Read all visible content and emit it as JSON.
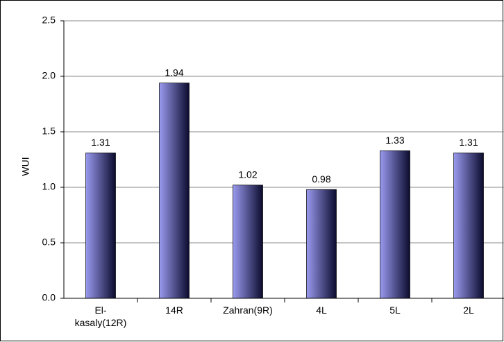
{
  "chart_data": {
    "type": "bar",
    "y_label": "WUI",
    "categories": [
      "El-kasaly(12R)",
      "14R",
      "Zahran(9R)",
      "4L",
      "5L",
      "2L"
    ],
    "values": [
      1.31,
      1.94,
      1.02,
      0.98,
      1.33,
      1.31
    ],
    "color": "#9a9af0",
    "ylim": [
      0,
      2.5
    ],
    "yticks": [
      {
        "value": 0,
        "label": "0.0"
      },
      0.5,
      {
        "value": 1,
        "label": "1.0"
      },
      1.5,
      {
        "value": 2,
        "label": "2.0"
      },
      2.5
    ],
    "grid": true
  }
}
